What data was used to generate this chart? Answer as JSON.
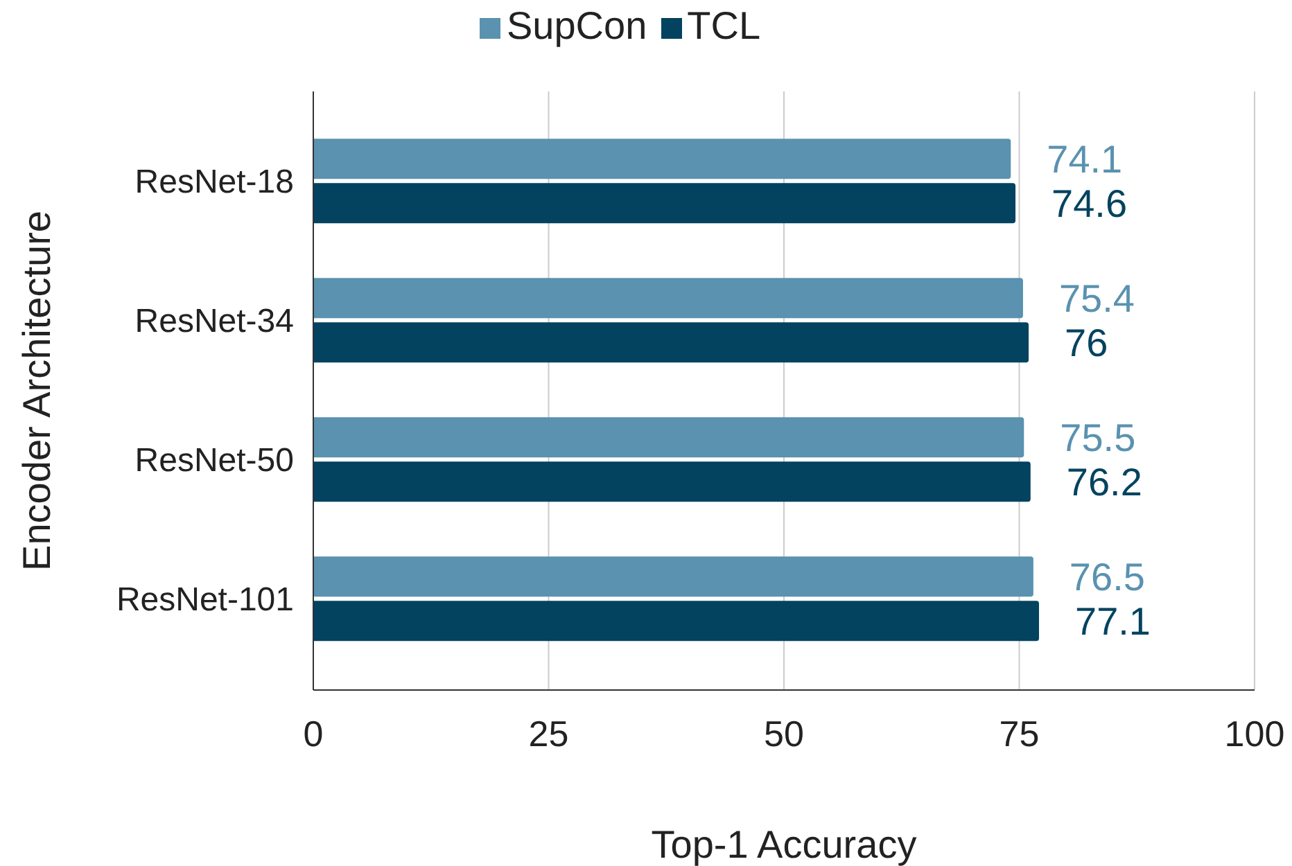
{
  "chart_data": {
    "type": "bar",
    "orientation": "horizontal",
    "categories": [
      "ResNet-18",
      "ResNet-34",
      "ResNet-50",
      "ResNet-101"
    ],
    "series": [
      {
        "name": "SupCon",
        "color": "#5a92b0",
        "values": [
          74.1,
          75.4,
          75.5,
          76.5
        ]
      },
      {
        "name": "TCL",
        "color": "#03435f",
        "values": [
          74.6,
          76,
          76.2,
          77.1
        ]
      }
    ],
    "xlabel": "Top-1 Accuracy",
    "ylabel": "Encoder Architecture",
    "xlim": [
      0,
      100
    ],
    "xticks": [
      0,
      25,
      50,
      75,
      100
    ],
    "grid": "x",
    "legend": "top",
    "data_labels": true
  }
}
